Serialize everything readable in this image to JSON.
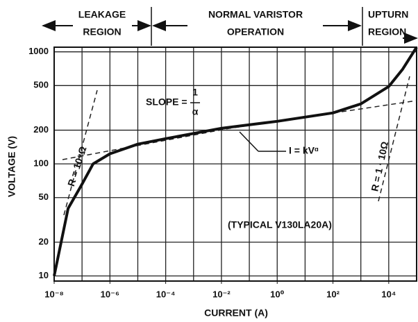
{
  "chart_data": {
    "type": "line",
    "x_label": "CURRENT (A)",
    "y_label": "VOLTAGE (V)",
    "log_x": true,
    "log_y": true,
    "grid": true,
    "xlim": [
      1e-08,
      100000.0
    ],
    "ylim": [
      9,
      1100
    ],
    "xticks": [
      {
        "value": 1e-08,
        "label": "10⁻⁸"
      },
      {
        "value": 1e-06,
        "label": "10⁻⁶"
      },
      {
        "value": 0.0001,
        "label": "10⁻⁴"
      },
      {
        "value": 0.01,
        "label": "10⁻²"
      },
      {
        "value": 1,
        "label": "10⁰"
      },
      {
        "value": 100,
        "label": "10²"
      },
      {
        "value": 10000,
        "label": "10⁴"
      }
    ],
    "xgrid": [
      1e-08,
      1e-07,
      1e-06,
      1e-05,
      0.0001,
      0.001,
      0.01,
      0.1,
      1,
      10,
      100,
      1000,
      10000,
      100000
    ],
    "yticks": [
      10,
      20,
      50,
      100,
      200,
      500,
      1000
    ],
    "series": [
      {
        "color": "#111111",
        "x": [
          1e-08,
          3.16e-08,
          1e-07,
          2.5e-07,
          1e-06,
          1e-05,
          0.0001,
          0.01,
          1,
          100,
          1000,
          10000,
          31600,
          100000
        ],
        "values": [
          10,
          40,
          66,
          100,
          123,
          150,
          168,
          208,
          240,
          285,
          343,
          490,
          700,
          1100
        ]
      }
    ],
    "regions": [
      [
        "LEAKAGE",
        "REGION"
      ],
      [
        "NORMAL VARISTOR",
        "OPERATION"
      ],
      [
        "UPTURN",
        "REGION"
      ]
    ],
    "slope_label": "SLOPE =",
    "slope_num": "1",
    "slope_den": "α",
    "law_label": "I = kVᵅ",
    "r_low_label": "R = 10⁹Ω",
    "r_high_label": "R = 1 · 10Ω",
    "device_label": "(TYPICAL V130LA20A)"
  }
}
